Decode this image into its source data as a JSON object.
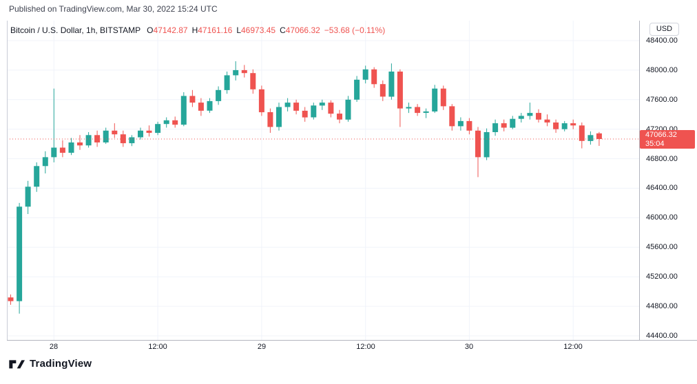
{
  "published_bar": {
    "text": "Published on TradingView.com, Mar 30, 2022 15:24 UTC"
  },
  "legend": {
    "title": "Bitcoin / U.S. Dollar, 1h, BITSTAMP",
    "open_label": "O",
    "open_value": "47142.87",
    "high_label": "H",
    "high_value": "47161.16",
    "low_label": "L",
    "low_value": "46973.45",
    "close_label": "C",
    "close_value": "47066.32",
    "change_value": "−53.68 (−0.11%)"
  },
  "price_axis": {
    "currency_button": "USD",
    "labels": [
      "48400.00",
      "48000.00",
      "47600.00",
      "47200.00",
      "46800.00",
      "46400.00",
      "46000.00",
      "45600.00",
      "45200.00",
      "44800.00",
      "44400.00"
    ],
    "price_tag": {
      "price": "47066.32",
      "countdown": "35:04"
    }
  },
  "footer": {
    "brand_name": "TradingView"
  },
  "colors": {
    "up": "#26a69a",
    "down": "#ef5350",
    "last_price_line": "#ef5350",
    "last_price_tag_bg": "#ef5350",
    "grid": "#f0f3fa",
    "text": "#131722"
  },
  "chart_data": {
    "type": "candlestick",
    "title": "Bitcoin / U.S. Dollar, 1h, BITSTAMP",
    "symbol": "BTC/USD",
    "exchange": "BITSTAMP",
    "interval": "1h",
    "unit": "USD",
    "y_range": [
      44344,
      48670
    ],
    "y_ticks": [
      44400,
      44800,
      45200,
      45600,
      46000,
      46400,
      46800,
      47200,
      47600,
      48000,
      48400
    ],
    "x_ticks": [
      {
        "index": 5,
        "label": "28"
      },
      {
        "index": 17,
        "label": "12:00"
      },
      {
        "index": 29,
        "label": "29"
      },
      {
        "index": 41,
        "label": "12:00"
      },
      {
        "index": 53,
        "label": "30"
      },
      {
        "index": 65,
        "label": "12:00"
      }
    ],
    "last_price": 47066.32,
    "last_change": -53.68,
    "last_change_pct": -0.11,
    "columns": [
      "time",
      "open",
      "high",
      "low",
      "close"
    ],
    "candles": [
      [
        "Mar 27 19:00",
        44920,
        44960,
        44820,
        44870
      ],
      [
        "Mar 27 20:00",
        44870,
        46200,
        44700,
        46150
      ],
      [
        "Mar 27 21:00",
        46150,
        46500,
        46050,
        46420
      ],
      [
        "Mar 27 22:00",
        46420,
        46750,
        46350,
        46700
      ],
      [
        "Mar 27 23:00",
        46700,
        46900,
        46600,
        46820
      ],
      [
        "Mar 28 00:00",
        46820,
        47750,
        46750,
        46950
      ],
      [
        "Mar 28 01:00",
        46950,
        47050,
        46820,
        46880
      ],
      [
        "Mar 28 02:00",
        46880,
        47080,
        46850,
        47020
      ],
      [
        "Mar 28 03:00",
        47020,
        47120,
        46920,
        46980
      ],
      [
        "Mar 28 04:00",
        46980,
        47160,
        46950,
        47120
      ],
      [
        "Mar 28 05:00",
        47120,
        47180,
        46960,
        47020
      ],
      [
        "Mar 28 06:00",
        47020,
        47220,
        47000,
        47180
      ],
      [
        "Mar 28 07:00",
        47180,
        47280,
        47080,
        47130
      ],
      [
        "Mar 28 08:00",
        47130,
        47180,
        46960,
        47010
      ],
      [
        "Mar 28 09:00",
        47010,
        47120,
        46970,
        47090
      ],
      [
        "Mar 28 10:00",
        47090,
        47220,
        47060,
        47180
      ],
      [
        "Mar 28 11:00",
        47180,
        47250,
        47100,
        47150
      ],
      [
        "Mar 28 12:00",
        47150,
        47300,
        47120,
        47270
      ],
      [
        "Mar 28 13:00",
        47270,
        47360,
        47220,
        47320
      ],
      [
        "Mar 28 14:00",
        47320,
        47370,
        47220,
        47260
      ],
      [
        "Mar 28 15:00",
        47260,
        47700,
        47240,
        47650
      ],
      [
        "Mar 28 16:00",
        47650,
        47730,
        47500,
        47560
      ],
      [
        "Mar 28 17:00",
        47560,
        47620,
        47380,
        47450
      ],
      [
        "Mar 28 18:00",
        47450,
        47620,
        47420,
        47580
      ],
      [
        "Mar 28 19:00",
        47580,
        47780,
        47530,
        47730
      ],
      [
        "Mar 28 20:00",
        47730,
        47980,
        47680,
        47930
      ],
      [
        "Mar 28 21:00",
        47930,
        48120,
        47860,
        48000
      ],
      [
        "Mar 28 22:00",
        48000,
        48070,
        47900,
        47960
      ],
      [
        "Mar 28 23:00",
        47960,
        48010,
        47680,
        47740
      ],
      [
        "Mar 29 00:00",
        47740,
        47790,
        47380,
        47430
      ],
      [
        "Mar 29 01:00",
        47430,
        47480,
        47150,
        47230
      ],
      [
        "Mar 29 02:00",
        47230,
        47560,
        47180,
        47500
      ],
      [
        "Mar 29 03:00",
        47500,
        47620,
        47440,
        47560
      ],
      [
        "Mar 29 04:00",
        47560,
        47600,
        47400,
        47450
      ],
      [
        "Mar 29 05:00",
        47450,
        47500,
        47300,
        47360
      ],
      [
        "Mar 29 06:00",
        47360,
        47560,
        47330,
        47520
      ],
      [
        "Mar 29 07:00",
        47520,
        47600,
        47460,
        47560
      ],
      [
        "Mar 29 08:00",
        47560,
        47590,
        47360,
        47410
      ],
      [
        "Mar 29 09:00",
        47410,
        47460,
        47280,
        47330
      ],
      [
        "Mar 29 10:00",
        47330,
        47650,
        47300,
        47600
      ],
      [
        "Mar 29 11:00",
        47600,
        47920,
        47570,
        47870
      ],
      [
        "Mar 29 12:00",
        47870,
        48060,
        47820,
        48010
      ],
      [
        "Mar 29 13:00",
        48010,
        48040,
        47760,
        47810
      ],
      [
        "Mar 29 14:00",
        47810,
        47860,
        47580,
        47640
      ],
      [
        "Mar 29 15:00",
        47640,
        48090,
        47600,
        47980
      ],
      [
        "Mar 29 16:00",
        47980,
        48010,
        47230,
        47480
      ],
      [
        "Mar 29 17:00",
        47480,
        47560,
        47420,
        47500
      ],
      [
        "Mar 29 18:00",
        47500,
        47540,
        47380,
        47420
      ],
      [
        "Mar 29 19:00",
        47420,
        47480,
        47350,
        47440
      ],
      [
        "Mar 29 20:00",
        47440,
        47800,
        47420,
        47750
      ],
      [
        "Mar 29 21:00",
        47750,
        47790,
        47460,
        47510
      ],
      [
        "Mar 29 22:00",
        47510,
        47540,
        47180,
        47240
      ],
      [
        "Mar 29 23:00",
        47240,
        47360,
        47180,
        47310
      ],
      [
        "Mar 30 00:00",
        47310,
        47350,
        47130,
        47180
      ],
      [
        "Mar 30 01:00",
        47180,
        47230,
        46550,
        46820
      ],
      [
        "Mar 30 02:00",
        46820,
        47210,
        46780,
        47160
      ],
      [
        "Mar 30 03:00",
        47160,
        47330,
        47110,
        47280
      ],
      [
        "Mar 30 04:00",
        47280,
        47330,
        47170,
        47220
      ],
      [
        "Mar 30 05:00",
        47220,
        47380,
        47200,
        47340
      ],
      [
        "Mar 30 06:00",
        47340,
        47420,
        47290,
        47380
      ],
      [
        "Mar 30 07:00",
        47380,
        47560,
        47330,
        47420
      ],
      [
        "Mar 30 08:00",
        47420,
        47470,
        47290,
        47330
      ],
      [
        "Mar 30 09:00",
        47330,
        47400,
        47240,
        47290
      ],
      [
        "Mar 30 10:00",
        47290,
        47330,
        47150,
        47200
      ],
      [
        "Mar 30 11:00",
        47200,
        47310,
        47170,
        47280
      ],
      [
        "Mar 30 12:00",
        47280,
        47330,
        47200,
        47250
      ],
      [
        "Mar 30 13:00",
        47250,
        47290,
        46940,
        47040
      ],
      [
        "Mar 30 14:00",
        47040,
        47170,
        46990,
        47120
      ],
      [
        "Mar 30 15:00",
        47142.87,
        47161.16,
        46973.45,
        47066.32
      ]
    ]
  }
}
